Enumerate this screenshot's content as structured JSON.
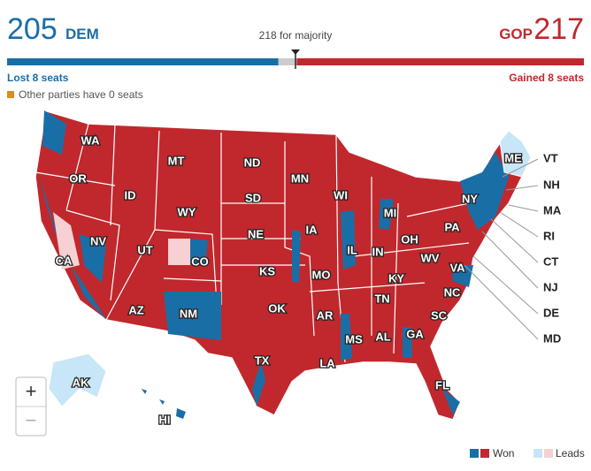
{
  "header": {
    "dem_seats": 205,
    "dem_label": "DEM",
    "gop_label": "GOP",
    "gop_seats": 217,
    "majority": {
      "value": 218,
      "label": "218 for majority"
    },
    "dem_change": "Lost 8 seats",
    "gop_change": "Gained 8 seats",
    "other_note": "Other parties have 0 seats"
  },
  "map": {
    "states": [
      "WA",
      "OR",
      "CA",
      "NV",
      "ID",
      "MT",
      "WY",
      "UT",
      "AZ",
      "CO",
      "NM",
      "ND",
      "SD",
      "NE",
      "KS",
      "OK",
      "TX",
      "MN",
      "IA",
      "MO",
      "AR",
      "LA",
      "WI",
      "IL",
      "MI",
      "IN",
      "OH",
      "KY",
      "TN",
      "MS",
      "AL",
      "GA",
      "FL",
      "SC",
      "NC",
      "VA",
      "WV",
      "PA",
      "NY",
      "ME",
      "AK",
      "HI"
    ],
    "callouts": [
      "VT",
      "NH",
      "MA",
      "RI",
      "CT",
      "NJ",
      "DE",
      "MD"
    ],
    "zoom": [
      "+",
      "−"
    ]
  },
  "legend": {
    "won": "Won",
    "leads": "Leads"
  }
}
